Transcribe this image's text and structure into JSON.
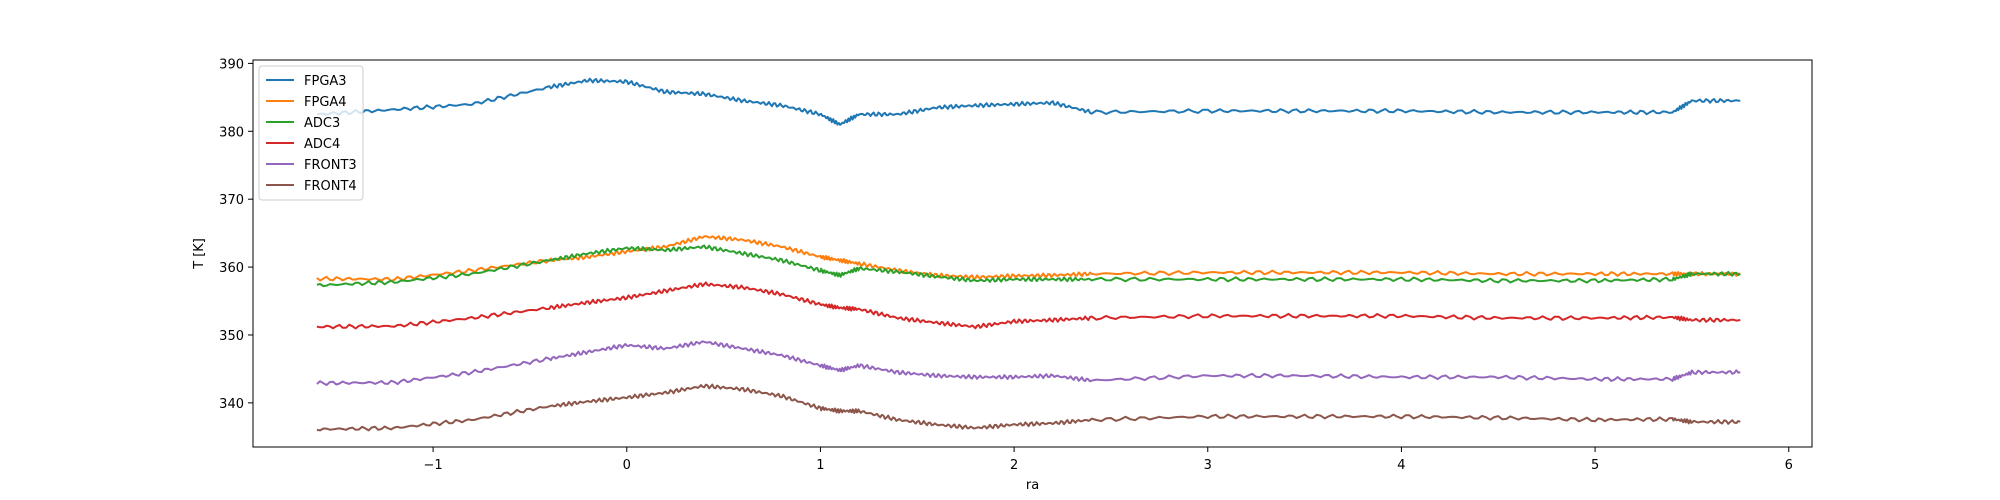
{
  "chart_data": {
    "type": "line",
    "title": "",
    "xlabel": "ra",
    "ylabel": "T [K]",
    "xlim": [
      -1.93,
      6.12
    ],
    "ylim": [
      333.5,
      390.5
    ],
    "xticks": [
      -1,
      0,
      1,
      2,
      3,
      4,
      5,
      6
    ],
    "xtick_labels": [
      "−1",
      "0",
      "1",
      "2",
      "3",
      "4",
      "5",
      "6"
    ],
    "yticks": [
      340,
      350,
      360,
      370,
      380,
      390
    ],
    "ytick_labels": [
      "340",
      "350",
      "360",
      "370",
      "380",
      "390"
    ],
    "grid": false,
    "legend_position": "top-left",
    "x": [
      -1.6,
      -1.2,
      -0.8,
      -0.4,
      -0.2,
      0,
      0.2,
      0.4,
      0.6,
      0.8,
      1.0,
      1.1,
      1.2,
      1.4,
      1.6,
      1.8,
      2.0,
      2.2,
      2.4,
      3.0,
      3.5,
      4.0,
      4.5,
      5.0,
      5.4,
      5.5,
      5.75
    ],
    "series": [
      {
        "name": "FPGA3",
        "color": "#1f77b4",
        "values": [
          382.5,
          383.2,
          384.0,
          386.5,
          387.5,
          387.3,
          385.8,
          385.5,
          384.5,
          383.8,
          382.5,
          381.0,
          382.5,
          382.5,
          383.5,
          383.8,
          384.0,
          384.2,
          382.8,
          383.0,
          383.0,
          383.0,
          382.8,
          382.8,
          382.8,
          384.5,
          384.5
        ]
      },
      {
        "name": "FPGA4",
        "color": "#ff7f0e",
        "values": [
          358.3,
          358.2,
          359.5,
          361.0,
          361.5,
          362.3,
          363.0,
          364.5,
          364.0,
          363.0,
          361.5,
          361.0,
          360.5,
          359.5,
          358.8,
          358.5,
          358.7,
          358.8,
          359.0,
          359.2,
          359.2,
          359.2,
          359.0,
          359.0,
          359.0,
          359.0,
          359.0
        ]
      },
      {
        "name": "ADC3",
        "color": "#2ca02c",
        "values": [
          357.3,
          357.8,
          359.0,
          361.0,
          362.0,
          362.8,
          362.5,
          363.0,
          362.0,
          361.0,
          359.5,
          358.8,
          359.8,
          359.3,
          358.6,
          358.0,
          358.2,
          358.2,
          358.2,
          358.2,
          358.2,
          358.2,
          358.0,
          358.0,
          358.2,
          359.0,
          359.0
        ]
      },
      {
        "name": "ADC4",
        "color": "#d62728",
        "values": [
          351.2,
          351.3,
          352.5,
          354.0,
          354.8,
          355.5,
          356.5,
          357.5,
          357.0,
          356.0,
          354.5,
          354.0,
          353.8,
          352.5,
          351.8,
          351.2,
          352.0,
          352.2,
          352.5,
          352.8,
          352.8,
          352.8,
          352.5,
          352.5,
          352.6,
          352.2,
          352.2
        ]
      },
      {
        "name": "FRONT3",
        "color": "#9467bd",
        "values": [
          342.9,
          343.0,
          344.5,
          346.5,
          347.5,
          348.5,
          348.0,
          349.0,
          348.0,
          347.0,
          345.5,
          344.8,
          345.5,
          344.5,
          344.0,
          343.8,
          343.8,
          344.0,
          343.3,
          344.0,
          344.0,
          343.8,
          343.8,
          343.5,
          343.5,
          344.5,
          344.5
        ]
      },
      {
        "name": "FRONT4",
        "color": "#8c564b",
        "values": [
          336.1,
          336.3,
          337.5,
          339.5,
          340.2,
          340.8,
          341.5,
          342.5,
          342.0,
          341.0,
          339.2,
          338.8,
          338.8,
          337.5,
          336.8,
          336.3,
          336.8,
          337.0,
          337.5,
          338.0,
          338.0,
          338.0,
          337.8,
          337.5,
          337.6,
          337.2,
          337.2
        ]
      }
    ]
  }
}
